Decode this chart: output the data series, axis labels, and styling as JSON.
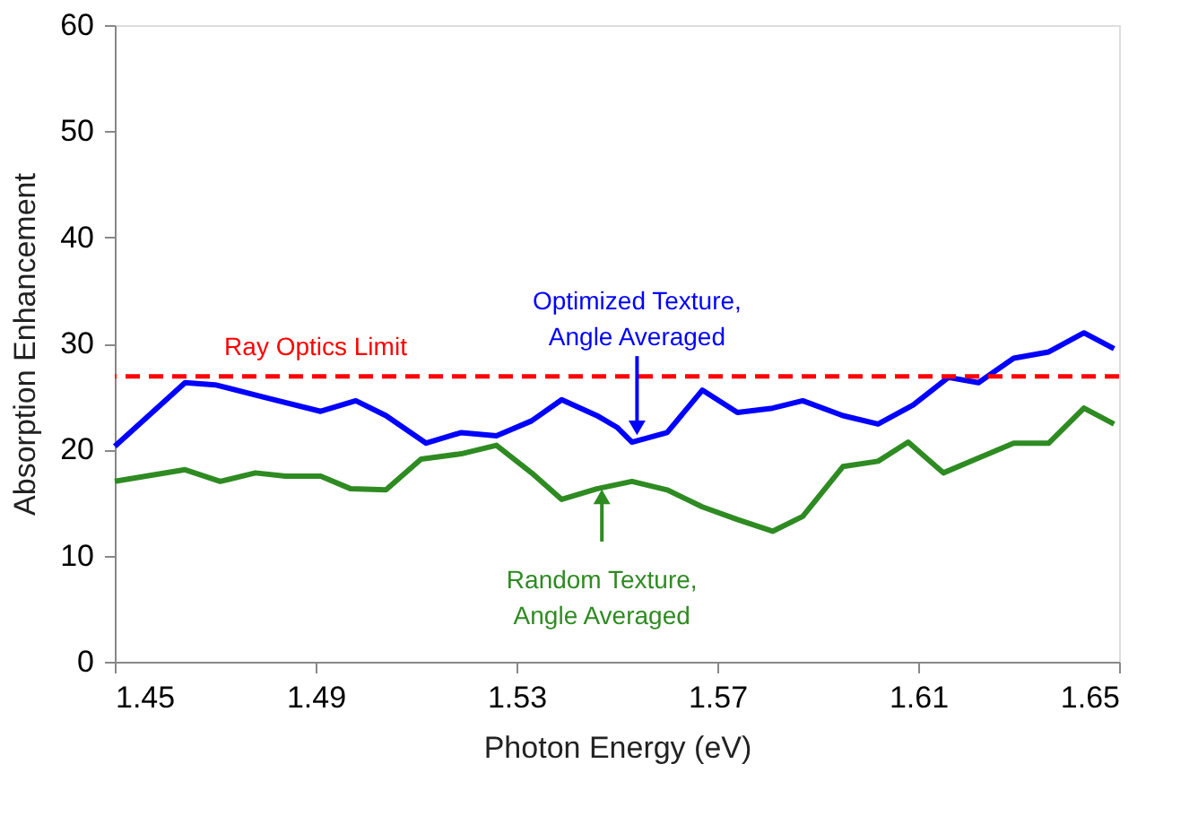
{
  "chart_data": {
    "type": "line",
    "xlabel": "Photon Energy (eV)",
    "ylabel": "Absorption Enhancement",
    "xlim": [
      1.45,
      1.65
    ],
    "xticks": [
      1.45,
      1.49,
      1.53,
      1.57,
      1.61,
      1.65
    ],
    "ylim": [
      0,
      60
    ],
    "yticks": [
      0,
      10,
      20,
      30,
      40,
      50,
      60
    ],
    "grid": false,
    "line_style": "solid",
    "marker": "none",
    "series": [
      {
        "color": "#0000ff",
        "x": [
          1.45,
          1.464,
          1.47,
          1.48,
          1.491,
          1.498,
          1.504,
          1.512,
          1.519,
          1.526,
          1.533,
          1.539,
          1.546,
          1.55,
          1.553,
          1.56,
          1.567,
          1.574,
          1.581,
          1.587,
          1.595,
          1.602,
          1.609,
          1.616,
          1.622,
          1.629,
          1.636,
          1.643,
          1.649
        ],
        "values": [
          20.3,
          26.3,
          26.1,
          24.9,
          23.6,
          24.6,
          23.2,
          20.6,
          21.6,
          21.3,
          22.7,
          24.7,
          23.2,
          22.1,
          20.7,
          21.6,
          25.6,
          23.5,
          23.9,
          24.6,
          23.2,
          22.4,
          24.2,
          26.8,
          26.3,
          28.6,
          29.2,
          31.0,
          29.5
        ]
      },
      {
        "color": "#2e8b22",
        "x": [
          1.45,
          1.464,
          1.471,
          1.478,
          1.484,
          1.491,
          1.497,
          1.504,
          1.511,
          1.519,
          1.526,
          1.533,
          1.539,
          1.546,
          1.553,
          1.56,
          1.567,
          1.574,
          1.581,
          1.587,
          1.595,
          1.602,
          1.608,
          1.615,
          1.622,
          1.629,
          1.636,
          1.643,
          1.649
        ],
        "values": [
          17.0,
          18.1,
          17.0,
          17.8,
          17.5,
          17.5,
          16.3,
          16.2,
          19.1,
          19.6,
          20.4,
          17.8,
          15.3,
          16.3,
          17.0,
          16.2,
          14.6,
          13.4,
          12.3,
          13.7,
          18.4,
          18.9,
          20.7,
          17.8,
          19.2,
          20.6,
          20.6,
          23.9,
          22.4
        ]
      }
    ],
    "ref_lines": [
      {
        "axis": "y",
        "value": 26.9,
        "label": "Ray Optics Limit",
        "color": "#ff0000",
        "line_style": "dashed"
      }
    ],
    "annotations": [
      {
        "text": "Optimized Texture,\nAngle Averaged",
        "x": 1.554,
        "y": 21.2
      },
      {
        "text": "Random Texture,\nAngle Averaged",
        "x": 1.547,
        "y": 16.4
      }
    ]
  }
}
